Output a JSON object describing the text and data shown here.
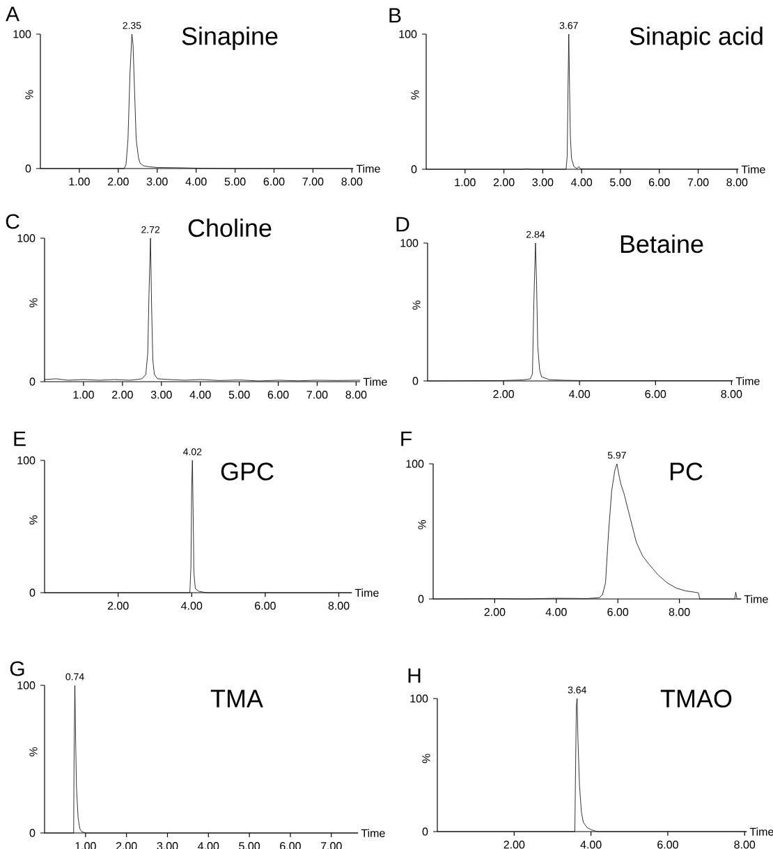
{
  "chart_data": [
    {
      "type": "line",
      "title": "Sinapine",
      "xlabel": "Time",
      "ylabel": "%",
      "color": "#000000",
      "marker": "none",
      "x": [
        0,
        2.15,
        2.2,
        2.25,
        2.3,
        2.35,
        2.38,
        2.42,
        2.46,
        2.48,
        2.52,
        2.56,
        2.65,
        2.8,
        3.0,
        3.5,
        4.0,
        5.0,
        8.03
      ],
      "values": [
        0,
        0,
        3,
        22,
        70,
        100,
        92,
        56,
        22,
        17,
        8,
        4,
        2,
        1.3,
        0.8,
        0.6,
        0.3,
        0,
        0
      ],
      "xlim": [
        0,
        8.03
      ],
      "ylim": [
        0,
        100
      ],
      "xticks": [
        {
          "value": 1,
          "label": "1.00"
        },
        {
          "value": 2,
          "label": "2.00"
        },
        {
          "value": 3,
          "label": "3.00"
        },
        {
          "value": 4,
          "label": "4.00"
        },
        {
          "value": 5,
          "label": "5.00"
        },
        {
          "value": 6,
          "label": "6.00"
        },
        {
          "value": 7,
          "label": "7.00"
        },
        {
          "value": 8,
          "label": "8.00"
        }
      ],
      "yticks": [
        0,
        100
      ],
      "annotations": [
        "A",
        {
          "text": "2.35",
          "x": 2.35,
          "y": 100
        }
      ]
    },
    {
      "type": "line",
      "title": "Sinapic acid",
      "xlabel": "Time",
      "ylabel": "%",
      "color": "#000000",
      "marker": "none",
      "x": [
        0,
        2.5,
        2.6,
        2.7,
        3.6,
        3.63,
        3.65,
        3.67,
        3.69,
        3.71,
        3.74,
        3.8,
        3.88,
        3.93,
        3.97,
        8.03
      ],
      "values": [
        0,
        0,
        0.3,
        0,
        0,
        10,
        60,
        100,
        60,
        25,
        8,
        2,
        0.5,
        2,
        0.3,
        0
      ],
      "xlim": [
        0,
        8.03
      ],
      "ylim": [
        0,
        100
      ],
      "xticks": [
        {
          "value": 1,
          "label": "1.00"
        },
        {
          "value": 2,
          "label": "2.00"
        },
        {
          "value": 3,
          "label": "3.00"
        },
        {
          "value": 4,
          "label": "4.00"
        },
        {
          "value": 5,
          "label": "5.00"
        },
        {
          "value": 6,
          "label": "6.00"
        },
        {
          "value": 7,
          "label": "7.00"
        },
        {
          "value": 8,
          "label": "8.00"
        }
      ],
      "yticks": [
        0,
        100
      ],
      "annotations": [
        "B",
        {
          "text": "3.67",
          "x": 3.67,
          "y": 100
        }
      ]
    },
    {
      "type": "line",
      "title": "Choline",
      "xlabel": "Time",
      "ylabel": "%",
      "color": "#000000",
      "marker": "none",
      "x": [
        0,
        0.3,
        0.6,
        1.0,
        1.4,
        1.8,
        2.2,
        2.5,
        2.6,
        2.65,
        2.68,
        2.72,
        2.75,
        2.78,
        2.82,
        2.9,
        3.2,
        3.6,
        4.0,
        4.5,
        5.0,
        5.5,
        6.0,
        6.5,
        7.0,
        7.5,
        8.1
      ],
      "values": [
        1.5,
        2,
        1,
        1.5,
        1,
        1.5,
        1,
        2,
        5,
        20,
        60,
        100,
        50,
        15,
        5,
        2,
        1.5,
        1,
        1.5,
        0.8,
        1.2,
        0.5,
        1,
        0.6,
        1,
        0.8,
        1
      ],
      "xlim": [
        0,
        8.1
      ],
      "ylim": [
        0,
        100
      ],
      "xticks": [
        {
          "value": 1,
          "label": "1.00"
        },
        {
          "value": 2,
          "label": "2.00"
        },
        {
          "value": 3,
          "label": "3.00"
        },
        {
          "value": 4,
          "label": "4.00"
        },
        {
          "value": 5,
          "label": "5.00"
        },
        {
          "value": 6,
          "label": "6.00"
        },
        {
          "value": 7,
          "label": "7.00"
        },
        {
          "value": 8,
          "label": "8.00"
        }
      ],
      "yticks": [
        0,
        100
      ],
      "annotations": [
        "C",
        {
          "text": "2.72",
          "x": 2.72,
          "y": 100
        }
      ]
    },
    {
      "type": "line",
      "title": "Betaine",
      "xlabel": "Time",
      "ylabel": "%",
      "color": "#000000",
      "marker": "none",
      "x": [
        0,
        2.0,
        2.5,
        2.7,
        2.76,
        2.8,
        2.84,
        2.87,
        2.9,
        2.95,
        3.0,
        3.2,
        3.6,
        4.0,
        8.03
      ],
      "values": [
        0,
        0.3,
        0.8,
        1.5,
        5,
        60,
        100,
        70,
        25,
        8,
        3,
        1,
        0.5,
        0.3,
        0.3
      ],
      "xlim": [
        0,
        8.03
      ],
      "ylim": [
        0,
        100
      ],
      "xticks": [
        {
          "value": 2,
          "label": "2.00"
        },
        {
          "value": 4,
          "label": "4.00"
        },
        {
          "value": 6,
          "label": "6.00"
        },
        {
          "value": 8,
          "label": "8.00"
        }
      ],
      "yticks": [
        0,
        100
      ],
      "annotations": [
        "D",
        {
          "text": "2.84",
          "x": 2.84,
          "y": 100
        }
      ]
    },
    {
      "type": "line",
      "title": "GPC",
      "xlabel": "Time",
      "ylabel": "%",
      "color": "#000000",
      "marker": "none",
      "x": [
        0,
        3.95,
        3.98,
        4.0,
        4.02,
        4.04,
        4.06,
        4.1,
        4.2,
        4.4,
        8.35
      ],
      "values": [
        0,
        0,
        20,
        80,
        100,
        60,
        15,
        3,
        1,
        0,
        0
      ],
      "xlim": [
        0,
        8.35
      ],
      "ylim": [
        0,
        100
      ],
      "xticks": [
        {
          "value": 2,
          "label": "2.00"
        },
        {
          "value": 4,
          "label": "4.00"
        },
        {
          "value": 6,
          "label": "6.00"
        },
        {
          "value": 8,
          "label": "8.00"
        }
      ],
      "yticks": [
        0,
        100
      ],
      "annotations": [
        "E",
        {
          "text": "4.02",
          "x": 4.02,
          "y": 100
        }
      ]
    },
    {
      "type": "line",
      "title": "PC",
      "xlabel": "Time",
      "ylabel": "%",
      "color": "#000000",
      "marker": "none",
      "x": [
        0,
        2.0,
        3.0,
        4.0,
        5.0,
        5.4,
        5.5,
        5.6,
        5.7,
        5.8,
        5.9,
        5.97,
        6.05,
        6.1,
        6.2,
        6.4,
        6.6,
        6.8,
        7.0,
        7.3,
        7.6,
        7.9,
        8.2,
        8.5,
        8.62,
        8.66,
        9.8,
        9.83,
        9.87,
        10.0
      ],
      "values": [
        0,
        0.3,
        0,
        0.5,
        0.3,
        1,
        3,
        12,
        50,
        80,
        95,
        100,
        90,
        85,
        78,
        60,
        42,
        32,
        26,
        18,
        12,
        8,
        6,
        5,
        4.5,
        0,
        0,
        5,
        0,
        0
      ],
      "xlim": [
        0,
        10.0
      ],
      "ylim": [
        0,
        100
      ],
      "xticks": [
        {
          "value": 2,
          "label": "2.00"
        },
        {
          "value": 4,
          "label": "4.00"
        },
        {
          "value": 6,
          "label": "6.00"
        },
        {
          "value": 8,
          "label": "8.00"
        }
      ],
      "yticks": [
        0,
        100
      ],
      "annotations": [
        "F",
        {
          "text": "5.97",
          "x": 5.97,
          "y": 100
        }
      ]
    },
    {
      "type": "line",
      "title": "TMA",
      "xlabel": "Time",
      "ylabel": "%",
      "color": "#000000",
      "marker": "none",
      "x": [
        0,
        0.71,
        0.72,
        0.74,
        0.76,
        0.78,
        0.82,
        0.86,
        0.9,
        1.0,
        7.65
      ],
      "values": [
        0,
        0,
        50,
        100,
        60,
        30,
        10,
        3,
        1,
        0,
        0
      ],
      "xlim": [
        0,
        7.65
      ],
      "ylim": [
        0,
        100
      ],
      "xticks": [
        {
          "value": 1,
          "label": "1.00"
        },
        {
          "value": 2,
          "label": "2.00"
        },
        {
          "value": 3,
          "label": "3.00"
        },
        {
          "value": 4,
          "label": "4.00"
        },
        {
          "value": 5,
          "label": "5.00"
        },
        {
          "value": 6,
          "label": "6.00"
        },
        {
          "value": 7,
          "label": "7.00"
        }
      ],
      "yticks": [
        0,
        100
      ],
      "annotations": [
        "G",
        {
          "text": "0.74",
          "x": 0.74,
          "y": 100
        }
      ]
    },
    {
      "type": "line",
      "title": "TMAO",
      "xlabel": "Time",
      "ylabel": "%",
      "color": "#000000",
      "marker": "none",
      "x": [
        0,
        3.58,
        3.6,
        3.62,
        3.64,
        3.66,
        3.7,
        3.75,
        3.8,
        3.9,
        4.0,
        4.1,
        4.2,
        8.05
      ],
      "values": [
        0,
        0,
        50,
        95,
        100,
        70,
        35,
        15,
        7,
        3,
        1.5,
        0.5,
        0,
        0
      ],
      "xlim": [
        0,
        8.05
      ],
      "ylim": [
        0,
        100
      ],
      "xticks": [
        {
          "value": 2,
          "label": "2.00"
        },
        {
          "value": 4,
          "label": "4.00"
        },
        {
          "value": 6,
          "label": "6.00"
        },
        {
          "value": 8,
          "label": "8.00"
        }
      ],
      "yticks": [
        0,
        100
      ],
      "annotations": [
        "H",
        {
          "text": "3.64",
          "x": 3.64,
          "y": 100
        }
      ]
    }
  ]
}
